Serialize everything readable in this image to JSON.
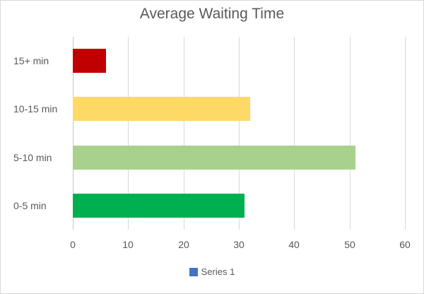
{
  "chart": {
    "title": "Average Waiting Time"
  },
  "chart_data": {
    "type": "bar",
    "orientation": "horizontal",
    "title": "Average Waiting Time",
    "categories": [
      "0-5 min",
      "5-10 min",
      "10-15 min",
      "15+ min"
    ],
    "series": [
      {
        "name": "Series 1",
        "values": [
          31,
          51,
          32,
          6
        ]
      }
    ],
    "bar_colors": [
      "#00B050",
      "#A9D18E",
      "#FFD966",
      "#C00000"
    ],
    "xlabel": "",
    "ylabel": "",
    "xlim": [
      0,
      60
    ],
    "x_ticks": [
      0,
      10,
      20,
      30,
      40,
      50,
      60
    ],
    "grid": "vertical-gridlines-on",
    "category_display_order_top_to_bottom": [
      "15+ min",
      "10-15 min",
      "5-10 min",
      "0-5 min"
    ],
    "legend": {
      "position": "bottom-center",
      "entries": [
        {
          "label": "Series 1",
          "swatch_color": "#4472C4"
        }
      ]
    },
    "colors": {
      "text": "#595959",
      "gridline": "#D9D9D9",
      "background": "#FFFFFF",
      "border": "#D9D9D9"
    }
  }
}
